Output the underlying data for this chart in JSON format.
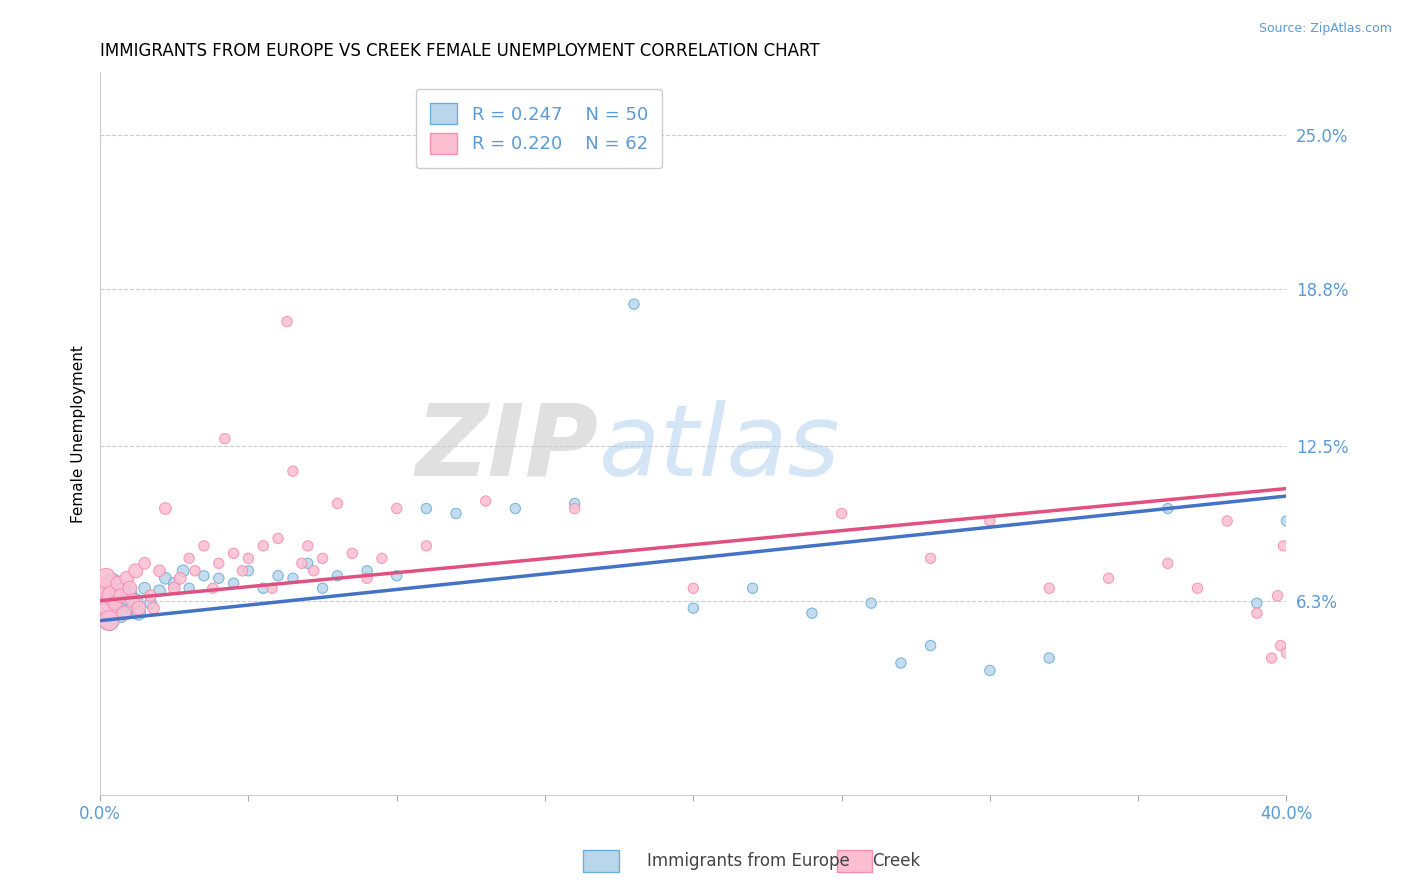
{
  "title": "IMMIGRANTS FROM EUROPE VS CREEK FEMALE UNEMPLOYMENT CORRELATION CHART",
  "source_text": "Source: ZipAtlas.com",
  "ylabel": "Female Unemployment",
  "xlim": [
    0.0,
    0.4
  ],
  "ylim": [
    -0.015,
    0.275
  ],
  "yticks": [
    0.063,
    0.125,
    0.188,
    0.25
  ],
  "ytick_labels": [
    "6.3%",
    "12.5%",
    "18.8%",
    "25.0%"
  ],
  "xticks": [
    0.0,
    0.05,
    0.1,
    0.15,
    0.2,
    0.25,
    0.3,
    0.35,
    0.4
  ],
  "xtick_labels": [
    "0.0%",
    "",
    "",
    "",
    "",
    "",
    "",
    "",
    "40.0%"
  ],
  "blue_label": "Immigrants from Europe",
  "pink_label": "Creek",
  "blue_R": "0.247",
  "blue_N": "50",
  "pink_R": "0.220",
  "pink_N": "62",
  "blue_color": "#bad6eb",
  "blue_edge_color": "#6baed6",
  "blue_line_color": "#4472c4",
  "pink_color": "#fcbfd2",
  "pink_edge_color": "#f48fb1",
  "pink_line_color": "#e05080",
  "watermark_zip": "ZIP",
  "watermark_atlas": "atlas",
  "title_fontsize": 12,
  "grid_color": "#cccccc",
  "blue_scatter": [
    [
      0.001,
      0.063
    ],
    [
      0.002,
      0.06
    ],
    [
      0.003,
      0.067
    ],
    [
      0.003,
      0.055
    ],
    [
      0.004,
      0.07
    ],
    [
      0.005,
      0.058
    ],
    [
      0.005,
      0.065
    ],
    [
      0.006,
      0.062
    ],
    [
      0.007,
      0.057
    ],
    [
      0.008,
      0.068
    ],
    [
      0.009,
      0.064
    ],
    [
      0.01,
      0.066
    ],
    [
      0.011,
      0.06
    ],
    [
      0.012,
      0.063
    ],
    [
      0.013,
      0.058
    ],
    [
      0.015,
      0.068
    ],
    [
      0.017,
      0.062
    ],
    [
      0.02,
      0.067
    ],
    [
      0.022,
      0.072
    ],
    [
      0.025,
      0.07
    ],
    [
      0.028,
      0.075
    ],
    [
      0.03,
      0.068
    ],
    [
      0.035,
      0.073
    ],
    [
      0.04,
      0.072
    ],
    [
      0.045,
      0.07
    ],
    [
      0.05,
      0.075
    ],
    [
      0.055,
      0.068
    ],
    [
      0.06,
      0.073
    ],
    [
      0.065,
      0.072
    ],
    [
      0.07,
      0.078
    ],
    [
      0.075,
      0.068
    ],
    [
      0.08,
      0.073
    ],
    [
      0.09,
      0.075
    ],
    [
      0.1,
      0.073
    ],
    [
      0.11,
      0.1
    ],
    [
      0.12,
      0.098
    ],
    [
      0.14,
      0.1
    ],
    [
      0.16,
      0.102
    ],
    [
      0.18,
      0.182
    ],
    [
      0.2,
      0.06
    ],
    [
      0.22,
      0.068
    ],
    [
      0.24,
      0.058
    ],
    [
      0.26,
      0.062
    ],
    [
      0.27,
      0.038
    ],
    [
      0.28,
      0.045
    ],
    [
      0.3,
      0.035
    ],
    [
      0.32,
      0.04
    ],
    [
      0.36,
      0.1
    ],
    [
      0.39,
      0.062
    ],
    [
      0.4,
      0.095
    ]
  ],
  "pink_scatter": [
    [
      0.001,
      0.068
    ],
    [
      0.002,
      0.072
    ],
    [
      0.003,
      0.06
    ],
    [
      0.003,
      0.055
    ],
    [
      0.004,
      0.065
    ],
    [
      0.005,
      0.062
    ],
    [
      0.006,
      0.07
    ],
    [
      0.007,
      0.065
    ],
    [
      0.008,
      0.058
    ],
    [
      0.009,
      0.072
    ],
    [
      0.01,
      0.068
    ],
    [
      0.011,
      0.063
    ],
    [
      0.012,
      0.075
    ],
    [
      0.013,
      0.06
    ],
    [
      0.015,
      0.078
    ],
    [
      0.017,
      0.065
    ],
    [
      0.018,
      0.06
    ],
    [
      0.02,
      0.075
    ],
    [
      0.022,
      0.1
    ],
    [
      0.025,
      0.068
    ],
    [
      0.027,
      0.072
    ],
    [
      0.03,
      0.08
    ],
    [
      0.032,
      0.075
    ],
    [
      0.035,
      0.085
    ],
    [
      0.038,
      0.068
    ],
    [
      0.04,
      0.078
    ],
    [
      0.042,
      0.128
    ],
    [
      0.045,
      0.082
    ],
    [
      0.048,
      0.075
    ],
    [
      0.05,
      0.08
    ],
    [
      0.055,
      0.085
    ],
    [
      0.058,
      0.068
    ],
    [
      0.06,
      0.088
    ],
    [
      0.063,
      0.175
    ],
    [
      0.065,
      0.115
    ],
    [
      0.068,
      0.078
    ],
    [
      0.07,
      0.085
    ],
    [
      0.072,
      0.075
    ],
    [
      0.075,
      0.08
    ],
    [
      0.08,
      0.102
    ],
    [
      0.085,
      0.082
    ],
    [
      0.09,
      0.072
    ],
    [
      0.095,
      0.08
    ],
    [
      0.1,
      0.1
    ],
    [
      0.11,
      0.085
    ],
    [
      0.13,
      0.103
    ],
    [
      0.16,
      0.1
    ],
    [
      0.2,
      0.068
    ],
    [
      0.25,
      0.098
    ],
    [
      0.28,
      0.08
    ],
    [
      0.3,
      0.095
    ],
    [
      0.32,
      0.068
    ],
    [
      0.34,
      0.072
    ],
    [
      0.36,
      0.078
    ],
    [
      0.37,
      0.068
    ],
    [
      0.38,
      0.095
    ],
    [
      0.39,
      0.058
    ],
    [
      0.395,
      0.04
    ],
    [
      0.398,
      0.045
    ],
    [
      0.4,
      0.042
    ],
    [
      0.399,
      0.085
    ],
    [
      0.397,
      0.065
    ]
  ],
  "blue_line_x": [
    0.0,
    0.4
  ],
  "blue_line_y": [
    0.055,
    0.105
  ],
  "pink_line_x": [
    0.0,
    0.4
  ],
  "pink_line_y": [
    0.063,
    0.108
  ]
}
